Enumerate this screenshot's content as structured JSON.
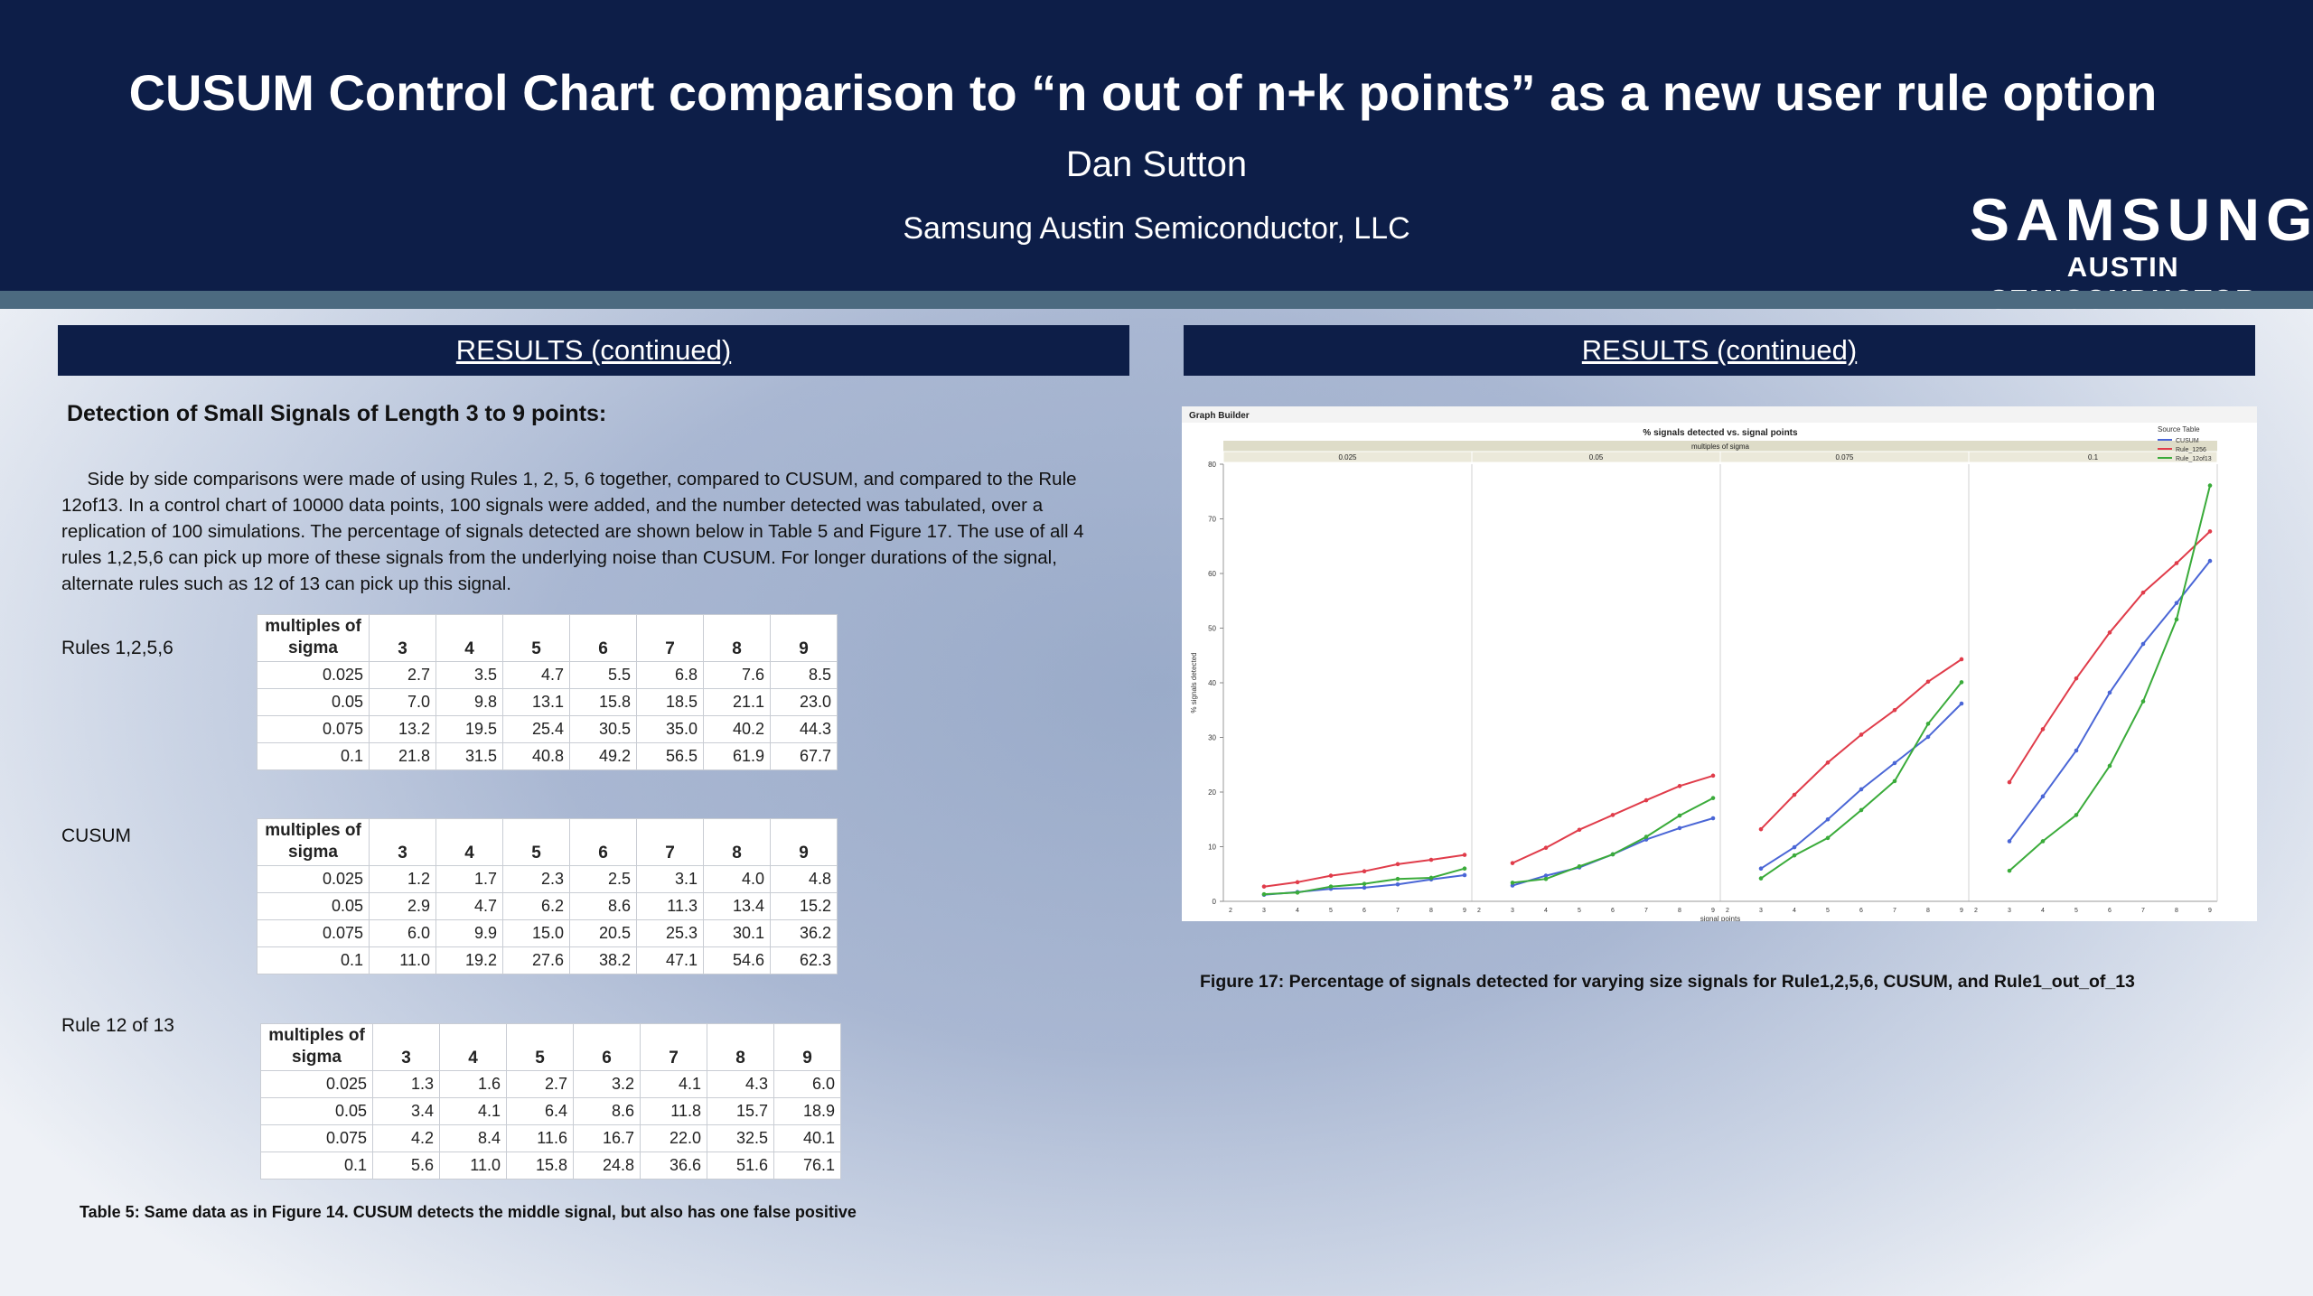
{
  "header": {
    "title": "CUSUM Control Chart comparison to “n out of n+k points” as a new user rule option",
    "author": "Dan Sutton",
    "affiliation": "Samsung Austin Semiconductor, LLC",
    "logo_word": "SAMSUNG",
    "logo_sub": "AUSTIN SEMICONDUCTOR"
  },
  "left": {
    "bar_title": "RESULTS (continued)",
    "heading": "Detection of Small Signals of Length 3 to 9 points:",
    "paragraph": "Side by side comparisons were made of using Rules 1, 2, 5, 6 together, compared to CUSUM, and compared to the Rule 12of13. In a control chart of 10000 data points, 100 signals were added, and the number detected was tabulated, over a replication of 100 simulations.  The percentage of signals detected are shown below in Table 5 and Figure 17. The use of all 4 rules 1,2,5,6 can pick up more of these signals from the underlying noise than CUSUM. For longer durations of the signal, alternate rules such as 12 of 13 can pick up this signal.",
    "table_header_sigma": "multiples of sigma",
    "columns": [
      "3",
      "4",
      "5",
      "6",
      "7",
      "8",
      "9"
    ],
    "tables": [
      {
        "label": "Rules 1,2,5,6",
        "rows": [
          {
            "sigma": "0.025",
            "values": [
              "2.7",
              "3.5",
              "4.7",
              "5.5",
              "6.8",
              "7.6",
              "8.5"
            ]
          },
          {
            "sigma": "0.05",
            "values": [
              "7.0",
              "9.8",
              "13.1",
              "15.8",
              "18.5",
              "21.1",
              "23.0"
            ]
          },
          {
            "sigma": "0.075",
            "values": [
              "13.2",
              "19.5",
              "25.4",
              "30.5",
              "35.0",
              "40.2",
              "44.3"
            ]
          },
          {
            "sigma": "0.1",
            "values": [
              "21.8",
              "31.5",
              "40.8",
              "49.2",
              "56.5",
              "61.9",
              "67.7"
            ]
          }
        ]
      },
      {
        "label": "CUSUM",
        "rows": [
          {
            "sigma": "0.025",
            "values": [
              "1.2",
              "1.7",
              "2.3",
              "2.5",
              "3.1",
              "4.0",
              "4.8"
            ]
          },
          {
            "sigma": "0.05",
            "values": [
              "2.9",
              "4.7",
              "6.2",
              "8.6",
              "11.3",
              "13.4",
              "15.2"
            ]
          },
          {
            "sigma": "0.075",
            "values": [
              "6.0",
              "9.9",
              "15.0",
              "20.5",
              "25.3",
              "30.1",
              "36.2"
            ]
          },
          {
            "sigma": "0.1",
            "values": [
              "11.0",
              "19.2",
              "27.6",
              "38.2",
              "47.1",
              "54.6",
              "62.3"
            ]
          }
        ]
      },
      {
        "label": "Rule 12 of 13",
        "rows": [
          {
            "sigma": "0.025",
            "values": [
              "1.3",
              "1.6",
              "2.7",
              "3.2",
              "4.1",
              "4.3",
              "6.0"
            ]
          },
          {
            "sigma": "0.05",
            "values": [
              "3.4",
              "4.1",
              "6.4",
              "8.6",
              "11.8",
              "15.7",
              "18.9"
            ]
          },
          {
            "sigma": "0.075",
            "values": [
              "4.2",
              "8.4",
              "11.6",
              "16.7",
              "22.0",
              "32.5",
              "40.1"
            ]
          },
          {
            "sigma": "0.1",
            "values": [
              "5.6",
              "11.0",
              "15.8",
              "24.8",
              "36.6",
              "51.6",
              "76.1"
            ]
          }
        ]
      }
    ],
    "table_caption": "Table 5: Same data as in Figure 14. CUSUM detects the middle signal, but also has one false positive"
  },
  "right": {
    "bar_title": "RESULTS (continued)",
    "figure_caption": "Figure 17: Percentage of signals detected for varying size signals for Rule1,2,5,6, CUSUM, and Rule1_out_of_13"
  },
  "chart_data": {
    "type": "line",
    "app_label": "Graph Builder",
    "title": "% signals detected vs. signal points",
    "panel_group_label": "multiples of sigma",
    "panels": [
      "0.025",
      "0.05",
      "0.075",
      "0.1"
    ],
    "x": [
      3,
      4,
      5,
      6,
      7,
      8,
      9
    ],
    "xlim": [
      2,
      9
    ],
    "ylim": [
      0,
      80
    ],
    "yticks": [
      0,
      10,
      20,
      30,
      40,
      50,
      60,
      70,
      80
    ],
    "xlabel": "signal points",
    "ylabel": "% signals detected",
    "legend_title": "Source Table",
    "legend_position": "top-right",
    "series": [
      {
        "name": "CUSUM",
        "color": "#4a66d6",
        "values": [
          [
            1.2,
            1.7,
            2.3,
            2.5,
            3.1,
            4.0,
            4.8
          ],
          [
            2.9,
            4.7,
            6.2,
            8.6,
            11.3,
            13.4,
            15.2
          ],
          [
            6.0,
            9.9,
            15.0,
            20.5,
            25.3,
            30.1,
            36.2
          ],
          [
            11.0,
            19.2,
            27.6,
            38.2,
            47.1,
            54.6,
            62.3
          ]
        ]
      },
      {
        "name": "Rule_1256",
        "color": "#e03c4a",
        "values": [
          [
            2.7,
            3.5,
            4.7,
            5.5,
            6.8,
            7.6,
            8.5
          ],
          [
            7.0,
            9.8,
            13.1,
            15.8,
            18.5,
            21.1,
            23.0
          ],
          [
            13.2,
            19.5,
            25.4,
            30.5,
            35.0,
            40.2,
            44.3
          ],
          [
            21.8,
            31.5,
            40.8,
            49.2,
            56.5,
            61.9,
            67.7
          ]
        ]
      },
      {
        "name": "Rule_12of13",
        "color": "#3aab3a",
        "values": [
          [
            1.3,
            1.6,
            2.7,
            3.2,
            4.1,
            4.3,
            6.0
          ],
          [
            3.4,
            4.1,
            6.4,
            8.6,
            11.8,
            15.7,
            18.9
          ],
          [
            4.2,
            8.4,
            11.6,
            16.7,
            22.0,
            32.5,
            40.1
          ],
          [
            5.6,
            11.0,
            15.8,
            24.8,
            36.6,
            51.6,
            76.1
          ]
        ]
      }
    ]
  }
}
